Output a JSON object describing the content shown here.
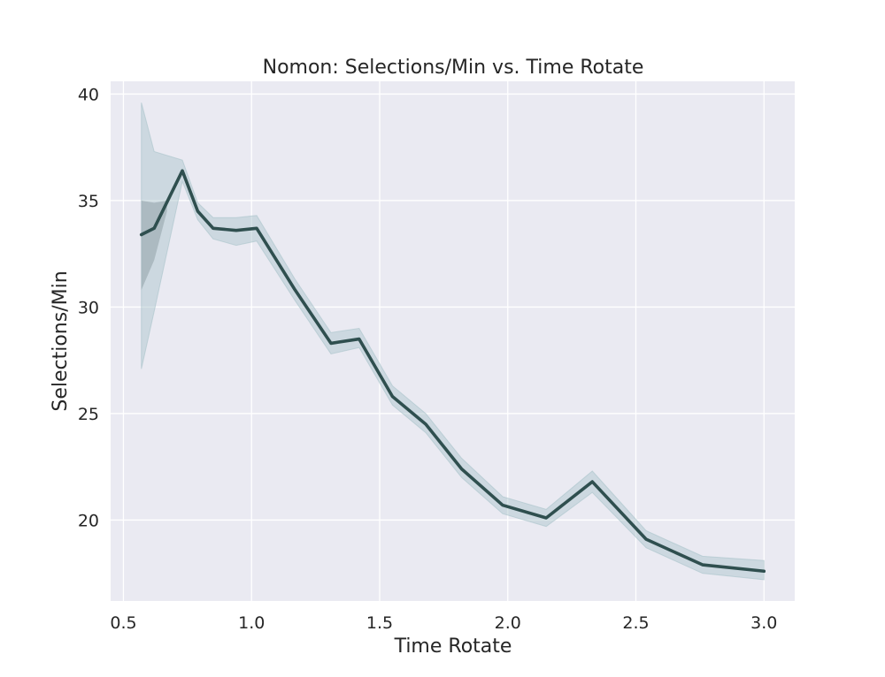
{
  "chart_data": {
    "type": "line",
    "title": "Nomon: Selections/Min vs. Time Rotate",
    "xlabel": "Time Rotate",
    "ylabel": "Selections/Min",
    "xlim": [
      0.45,
      3.12
    ],
    "ylim": [
      16.2,
      40.6
    ],
    "xticks": [
      0.5,
      1.0,
      1.5,
      2.0,
      2.5,
      3.0
    ],
    "xtick_labels": [
      "0.5",
      "1.0",
      "1.5",
      "2.0",
      "2.5",
      "3.0"
    ],
    "yticks": [
      20,
      25,
      30,
      35,
      40
    ],
    "ytick_labels": [
      "20",
      "25",
      "30",
      "35",
      "40"
    ],
    "grid": true,
    "colors": {
      "background": "#eaeaf2",
      "grid": "#ffffff",
      "line": "#2f4f4f",
      "band": "#a9c3c9"
    },
    "series": [
      {
        "x": [
          0.57,
          0.62,
          0.73,
          0.79,
          0.85,
          0.94,
          1.02,
          1.17,
          1.31,
          1.42,
          1.55,
          1.68,
          1.82,
          1.98,
          2.15,
          2.33,
          2.54,
          2.76,
          3.0
        ],
        "y": [
          33.4,
          33.7,
          36.4,
          34.5,
          33.7,
          33.6,
          33.7,
          30.8,
          28.3,
          28.5,
          25.8,
          24.5,
          22.4,
          20.7,
          20.1,
          21.8,
          19.1,
          17.9,
          17.6
        ]
      }
    ],
    "bands": [
      {
        "x": [
          0.57,
          0.62,
          0.73,
          0.79,
          0.85,
          0.94,
          1.02,
          1.17,
          1.31,
          1.42,
          1.55,
          1.68,
          1.82,
          1.98,
          2.15,
          2.33,
          2.54,
          2.76,
          3.0
        ],
        "lower": [
          27.1,
          29.8,
          35.9,
          34.1,
          33.2,
          32.9,
          33.1,
          30.3,
          27.8,
          28.1,
          25.4,
          24.1,
          22.0,
          20.3,
          19.7,
          21.3,
          18.7,
          17.5,
          17.2
        ],
        "upper": [
          39.6,
          37.3,
          36.9,
          34.9,
          34.2,
          34.2,
          34.3,
          31.3,
          28.8,
          29.0,
          26.3,
          25.0,
          22.9,
          21.1,
          20.5,
          22.3,
          19.5,
          18.3,
          18.1
        ]
      },
      {
        "x": [
          0.57,
          0.62,
          0.67
        ],
        "lower": [
          30.8,
          32.2,
          34.5
        ],
        "upper": [
          35.0,
          34.9,
          35.0
        ]
      }
    ]
  }
}
